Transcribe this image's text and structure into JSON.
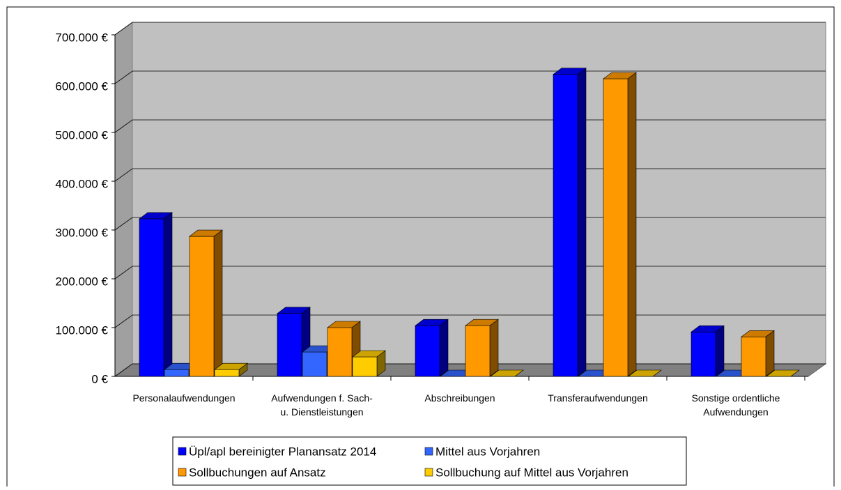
{
  "chart_data": {
    "type": "bar3d",
    "categories": [
      "Personalaufwendungen",
      "Aufwendungen f. Sach-\nu. Dienstleistungen",
      "Abschreibungen",
      "Transferaufwendungen",
      "Sonstige ordentliche\nAufwendungen"
    ],
    "series": [
      {
        "name": "Üpl/apl bereinigter Planansatz 2014",
        "color": "#0000ff",
        "values": [
          323000,
          129000,
          104000,
          619000,
          91000
        ]
      },
      {
        "name": "Mittel aus Vorjahren",
        "color": "#3366ff",
        "values": [
          14000,
          50000,
          0,
          0,
          0
        ]
      },
      {
        "name": "Sollbuchungen auf Ansatz",
        "color": "#ff9900",
        "values": [
          287000,
          100000,
          104000,
          610000,
          81000
        ]
      },
      {
        "name": "Sollbuchung auf Mittel aus Vorjahren",
        "color": "#ffcc00",
        "values": [
          14000,
          40000,
          0,
          0,
          0
        ]
      }
    ],
    "ylim": [
      0,
      700000
    ],
    "yticks": [
      {
        "value": 0,
        "label": "0 €"
      },
      {
        "value": 100000,
        "label": "100.000 €"
      },
      {
        "value": 200000,
        "label": "200.000 €"
      },
      {
        "value": 300000,
        "label": "300.000 €"
      },
      {
        "value": 400000,
        "label": "400.000 €"
      },
      {
        "value": 500000,
        "label": "500.000 €"
      },
      {
        "value": 600000,
        "label": "600.000 €"
      },
      {
        "value": 700000,
        "label": "700.000 €"
      }
    ],
    "grid": true,
    "legend": "bottom"
  }
}
